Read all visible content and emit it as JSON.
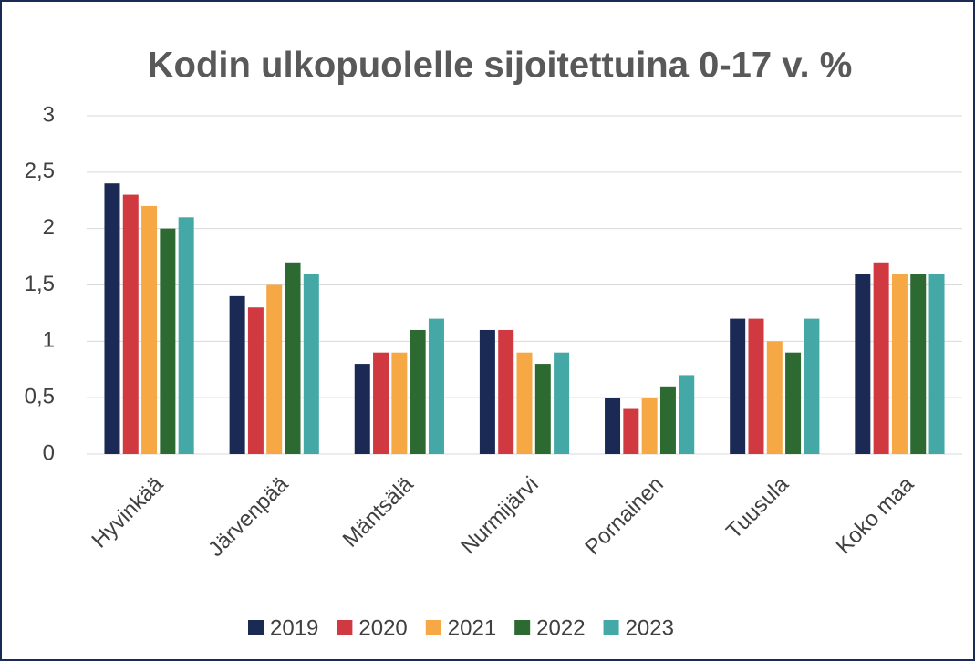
{
  "chart_data": {
    "type": "bar",
    "title": "Kodin ulkopuolelle sijoitettuina 0-17 v. %",
    "categories": [
      "Hyvinkää",
      "Järvenpää",
      "Mäntsälä",
      "Nurmijärvi",
      "Pornainen",
      "Tuusula",
      "Koko maa"
    ],
    "series": [
      {
        "name": "2019",
        "color": "#1b2a55",
        "values": [
          2.4,
          1.4,
          0.8,
          1.1,
          0.5,
          1.2,
          1.6
        ]
      },
      {
        "name": "2020",
        "color": "#d0393f",
        "values": [
          2.3,
          1.3,
          0.9,
          1.1,
          0.4,
          1.2,
          1.7
        ]
      },
      {
        "name": "2021",
        "color": "#f5a843",
        "values": [
          2.2,
          1.5,
          0.9,
          0.9,
          0.5,
          1.0,
          1.6
        ]
      },
      {
        "name": "2022",
        "color": "#2c6a32",
        "values": [
          2.0,
          1.7,
          1.1,
          0.8,
          0.6,
          0.9,
          1.6
        ]
      },
      {
        "name": "2023",
        "color": "#43a8a6",
        "values": [
          2.1,
          1.6,
          1.2,
          0.9,
          0.7,
          1.2,
          1.6
        ]
      }
    ],
    "ylim": [
      0,
      3
    ],
    "yticks": [
      0,
      {
        "value": 0.5,
        "label": "0,5"
      },
      1,
      {
        "value": 1.5,
        "label": "1,5"
      },
      2,
      {
        "value": 2.5,
        "label": "2,5"
      },
      3
    ],
    "grid": true,
    "legend": "bottom"
  }
}
